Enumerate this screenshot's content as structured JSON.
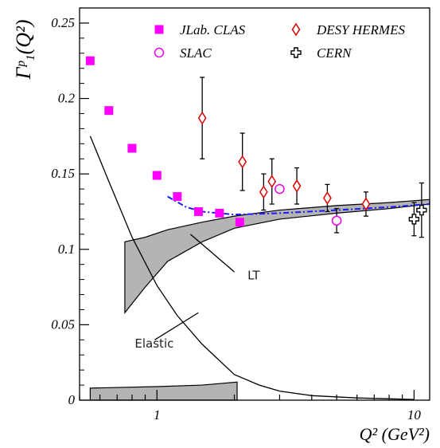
{
  "chart_data": {
    "type": "scatter",
    "xlabel": "Q² (GeV²)",
    "ylabel": "Γᵖ₁(Q²)",
    "x_scale": "log",
    "xlim": [
      0.5,
      11.5
    ],
    "ylim": [
      0,
      0.26
    ],
    "x_ticks": [
      {
        "v": 1,
        "label": "1"
      },
      {
        "v": 10,
        "label": "10"
      }
    ],
    "y_ticks": [
      {
        "v": 0,
        "label": "0"
      },
      {
        "v": 0.05,
        "label": "0.05"
      },
      {
        "v": 0.1,
        "label": "0.1"
      },
      {
        "v": 0.15,
        "label": "0.15"
      },
      {
        "v": 0.2,
        "label": "0.2"
      },
      {
        "v": 0.25,
        "label": "0.25"
      }
    ],
    "legend": {
      "placement": "top",
      "entries": [
        {
          "name": "JLab. CLAS",
          "marker": "filled-square",
          "color": "#ff00ff"
        },
        {
          "name": "DESY HERMES",
          "marker": "open-diamond",
          "color": "#dd0000"
        },
        {
          "name": "SLAC",
          "marker": "open-circle",
          "color": "#ee00ee"
        },
        {
          "name": "CERN",
          "marker": "open-cross",
          "color": "#000000"
        }
      ]
    },
    "series": [
      {
        "name": "JLab. CLAS",
        "marker": "filled-square",
        "color": "#ff00ff",
        "points": [
          {
            "x": 0.55,
            "y": 0.225
          },
          {
            "x": 0.65,
            "y": 0.192
          },
          {
            "x": 0.8,
            "y": 0.167
          },
          {
            "x": 1.0,
            "y": 0.149
          },
          {
            "x": 1.2,
            "y": 0.135
          },
          {
            "x": 1.45,
            "y": 0.125
          },
          {
            "x": 1.75,
            "y": 0.124
          },
          {
            "x": 2.1,
            "y": 0.118
          }
        ]
      },
      {
        "name": "DESY HERMES",
        "marker": "open-diamond",
        "color": "#dd0000",
        "points": [
          {
            "x": 1.5,
            "y": 0.187,
            "lo": 0.16,
            "hi": 0.214
          },
          {
            "x": 2.15,
            "y": 0.158,
            "lo": 0.139,
            "hi": 0.177
          },
          {
            "x": 2.6,
            "y": 0.138,
            "lo": 0.126,
            "hi": 0.15
          },
          {
            "x": 2.8,
            "y": 0.145,
            "lo": 0.13,
            "hi": 0.16
          },
          {
            "x": 3.5,
            "y": 0.142,
            "lo": 0.13,
            "hi": 0.154
          },
          {
            "x": 4.6,
            "y": 0.134,
            "lo": 0.125,
            "hi": 0.143
          },
          {
            "x": 6.5,
            "y": 0.13,
            "lo": 0.122,
            "hi": 0.138
          }
        ]
      },
      {
        "name": "SLAC",
        "marker": "open-circle",
        "color": "#ee00ee",
        "points": [
          {
            "x": 3.0,
            "y": 0.14
          },
          {
            "x": 5.0,
            "y": 0.119,
            "lo": 0.111,
            "hi": 0.127
          }
        ]
      },
      {
        "name": "CERN",
        "marker": "open-cross",
        "color": "#000000",
        "points": [
          {
            "x": 10.0,
            "y": 0.12,
            "lo": 0.109,
            "hi": 0.131
          },
          {
            "x": 10.7,
            "y": 0.126,
            "lo": 0.108,
            "hi": 0.144
          }
        ]
      }
    ],
    "curves": [
      {
        "name": "Elastic",
        "style": "solid",
        "color": "#000000",
        "points": [
          [
            0.55,
            0.175
          ],
          [
            0.65,
            0.145
          ],
          [
            0.8,
            0.108
          ],
          [
            1.0,
            0.076
          ],
          [
            1.2,
            0.056
          ],
          [
            1.5,
            0.037
          ],
          [
            2.0,
            0.017
          ],
          [
            2.5,
            0.01
          ],
          [
            3.0,
            0.006
          ],
          [
            4.0,
            0.003
          ],
          [
            6.0,
            0.0015
          ],
          [
            10.0,
            0.0005
          ]
        ]
      },
      {
        "name": "model",
        "style": "dash-dot",
        "color": "#1a1aff",
        "points": [
          [
            1.1,
            0.135
          ],
          [
            1.3,
            0.128
          ],
          [
            1.5,
            0.125
          ],
          [
            2.0,
            0.123
          ],
          [
            3.0,
            0.124
          ],
          [
            5.0,
            0.126
          ],
          [
            8.0,
            0.128
          ],
          [
            11.5,
            0.13
          ]
        ]
      }
    ],
    "bands": [
      {
        "name": "LT",
        "color": "#b4b4b4",
        "upper": [
          [
            0.75,
            0.105
          ],
          [
            0.9,
            0.108
          ],
          [
            1.1,
            0.113
          ],
          [
            1.5,
            0.118
          ],
          [
            2.0,
            0.122
          ],
          [
            3.0,
            0.126
          ],
          [
            5.0,
            0.129
          ],
          [
            8.0,
            0.131
          ],
          [
            11.5,
            0.133
          ]
        ],
        "lower": [
          [
            0.75,
            0.058
          ],
          [
            0.9,
            0.075
          ],
          [
            1.1,
            0.092
          ],
          [
            1.5,
            0.105
          ],
          [
            2.0,
            0.114
          ],
          [
            3.0,
            0.12
          ],
          [
            5.0,
            0.124
          ],
          [
            8.0,
            0.127
          ],
          [
            11.5,
            0.13
          ]
        ]
      },
      {
        "name": "low-band",
        "color": "#b4b4b4",
        "upper": [
          [
            0.55,
            0.008
          ],
          [
            1.0,
            0.009
          ],
          [
            1.5,
            0.01
          ],
          [
            2.05,
            0.012
          ]
        ],
        "lower": [
          [
            0.55,
            0.0
          ],
          [
            2.05,
            0.0
          ]
        ]
      }
    ],
    "annotations": [
      {
        "text": "LT",
        "x": 2.25,
        "y": 0.08,
        "arrow_from": [
          2.0,
          0.085
        ],
        "arrow_to": [
          1.35,
          0.11
        ]
      },
      {
        "text": "Elastic",
        "x": 0.82,
        "y": 0.035,
        "arrow_from": [
          1.45,
          0.058
        ],
        "arrow_to": [
          0.98,
          0.04
        ]
      }
    ]
  }
}
